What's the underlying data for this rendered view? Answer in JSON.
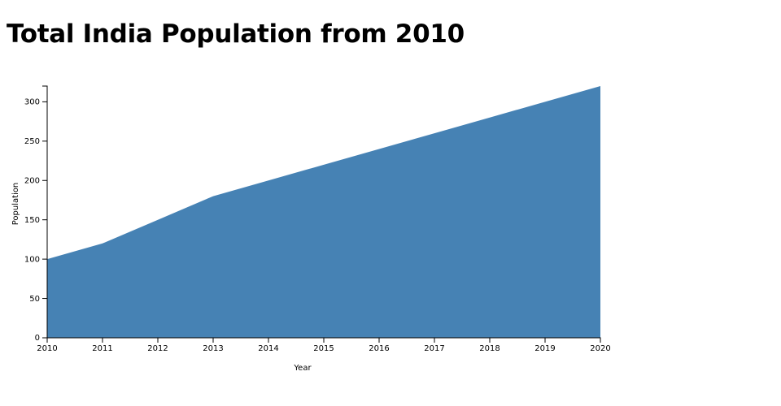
{
  "chart_data": {
    "type": "area",
    "title": "Total India Population from 2010",
    "xlabel": "Year",
    "ylabel": "Population",
    "x": [
      2010,
      2011,
      2012,
      2013,
      2014,
      2015,
      2016,
      2017,
      2018,
      2019,
      2020
    ],
    "values": [
      100,
      120,
      150,
      180,
      200,
      220,
      240,
      260,
      280,
      300,
      320
    ],
    "xlim": [
      2010,
      2020
    ],
    "ylim": [
      0,
      320
    ],
    "yticks": [
      0,
      50,
      100,
      150,
      200,
      250,
      300
    ],
    "xticks": [
      2010,
      2011,
      2012,
      2013,
      2014,
      2015,
      2016,
      2017,
      2018,
      2019,
      2020
    ],
    "fill_color": "#4682b4",
    "grid": false
  }
}
